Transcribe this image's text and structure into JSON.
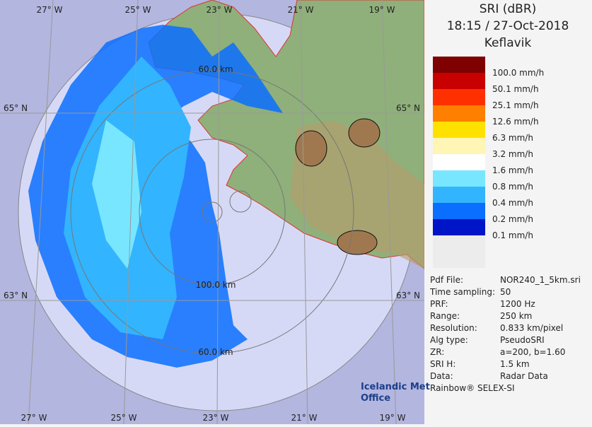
{
  "header": {
    "title": "SRI (dBR)",
    "time": "18:15 / 27-Oct-2018",
    "site": "Keflavik"
  },
  "legend": [
    {
      "label": "100.0 mm/h",
      "color": "#7f0000"
    },
    {
      "label": "50.1 mm/h",
      "color": "#c80000"
    },
    {
      "label": "25.1 mm/h",
      "color": "#ff3000"
    },
    {
      "label": "12.6 mm/h",
      "color": "#ff7f00"
    },
    {
      "label": "6.3 mm/h",
      "color": "#ffe100"
    },
    {
      "label": "3.2 mm/h",
      "color": "#fff5b4"
    },
    {
      "label": "1.6 mm/h",
      "color": "#ffffff"
    },
    {
      "label": "0.8 mm/h",
      "color": "#78e6ff"
    },
    {
      "label": "0.4 mm/h",
      "color": "#32b4ff"
    },
    {
      "label": "0.2 mm/h",
      "color": "#0a6eff"
    },
    {
      "label": "0.1 mm/h",
      "color": "#0014c8"
    }
  ],
  "info": [
    [
      "Pdf File:",
      "NOR240_1_5km.sri"
    ],
    [
      "Time sampling:",
      "50"
    ],
    [
      "PRF:",
      "1200 Hz"
    ],
    [
      "Range:",
      "250 km"
    ],
    [
      "Resolution:",
      "0.833 km/pixel"
    ],
    [
      "Alg type:",
      "PseudoSRI"
    ],
    [
      "ZR:",
      "a=200, b=1.60"
    ],
    [
      "SRI H:",
      "1.5 km"
    ],
    [
      "Data:",
      "Radar Data"
    ]
  ],
  "footer": "Rainbow® SELEX-SI",
  "logo": [
    "Icelandic Met",
    "Office"
  ],
  "graticule": {
    "top": [
      "27° W",
      "25° W",
      "23° W",
      "21° W",
      "19° W"
    ],
    "bottom": [
      "27° W",
      "25° W",
      "23° W",
      "21° W",
      "19° W"
    ],
    "left": [
      "65° N",
      "63° N"
    ],
    "right": [
      "65° N",
      "63° N"
    ]
  },
  "rings": [
    "60.0 km",
    "100.0 km",
    "60.0 km"
  ]
}
